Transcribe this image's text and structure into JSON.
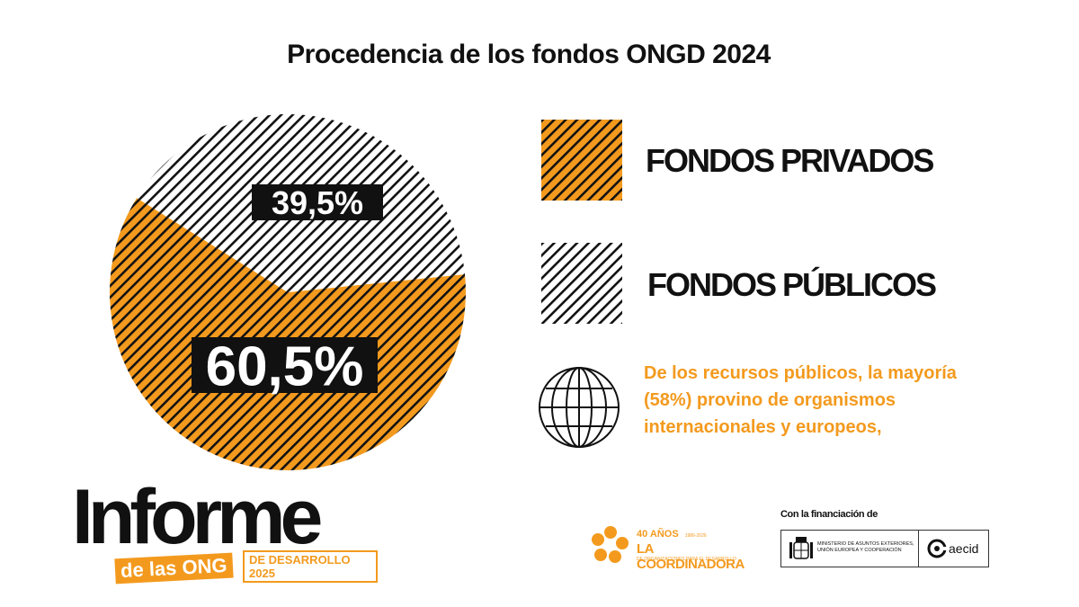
{
  "title": "Procedencia de los fondos ONGD 2024",
  "colors": {
    "orange": "#f39a1e",
    "stripe": "#111111",
    "white": "#ffffff"
  },
  "chart_data": {
    "type": "pie",
    "title": "Procedencia de los fondos ONGD 2024",
    "slices": [
      {
        "name": "FONDOS PRIVADOS",
        "value": 60.5,
        "label": "60,5%",
        "fill": "orange-hatched"
      },
      {
        "name": "FONDOS PÚBLICOS",
        "value": 39.5,
        "label": "39,5%",
        "fill": "white-hatched"
      }
    ],
    "legend_placement": "right"
  },
  "legend": {
    "items": [
      {
        "label": "FONDOS PRIVADOS"
      },
      {
        "label": "FONDOS PÚBLICOS"
      }
    ]
  },
  "note": {
    "icon": "globe-icon",
    "text": " De los recursos públicos, la mayoría (58%) provino de organismos internacionales y europeos,"
  },
  "footer": {
    "logo_main": "Informe",
    "logo_sub": "de las ONG",
    "logo_sub2": "DE DESARROLLO 2025",
    "coordinadora_line1": "40 AÑOS",
    "coordinadora_years": "1986-2026",
    "coordinadora_line2": "LA COORDINADORA",
    "coordinadora_line3": "DE ORGANIZACIONES PARA EL DESARROLLO",
    "financing_label": "Con la financiación de",
    "ministry_text": "MINISTERIO DE ASUNTOS EXTERIORES, UNIÓN EUROPEA Y COOPERACIÓN",
    "aecid_text": "aecid"
  }
}
